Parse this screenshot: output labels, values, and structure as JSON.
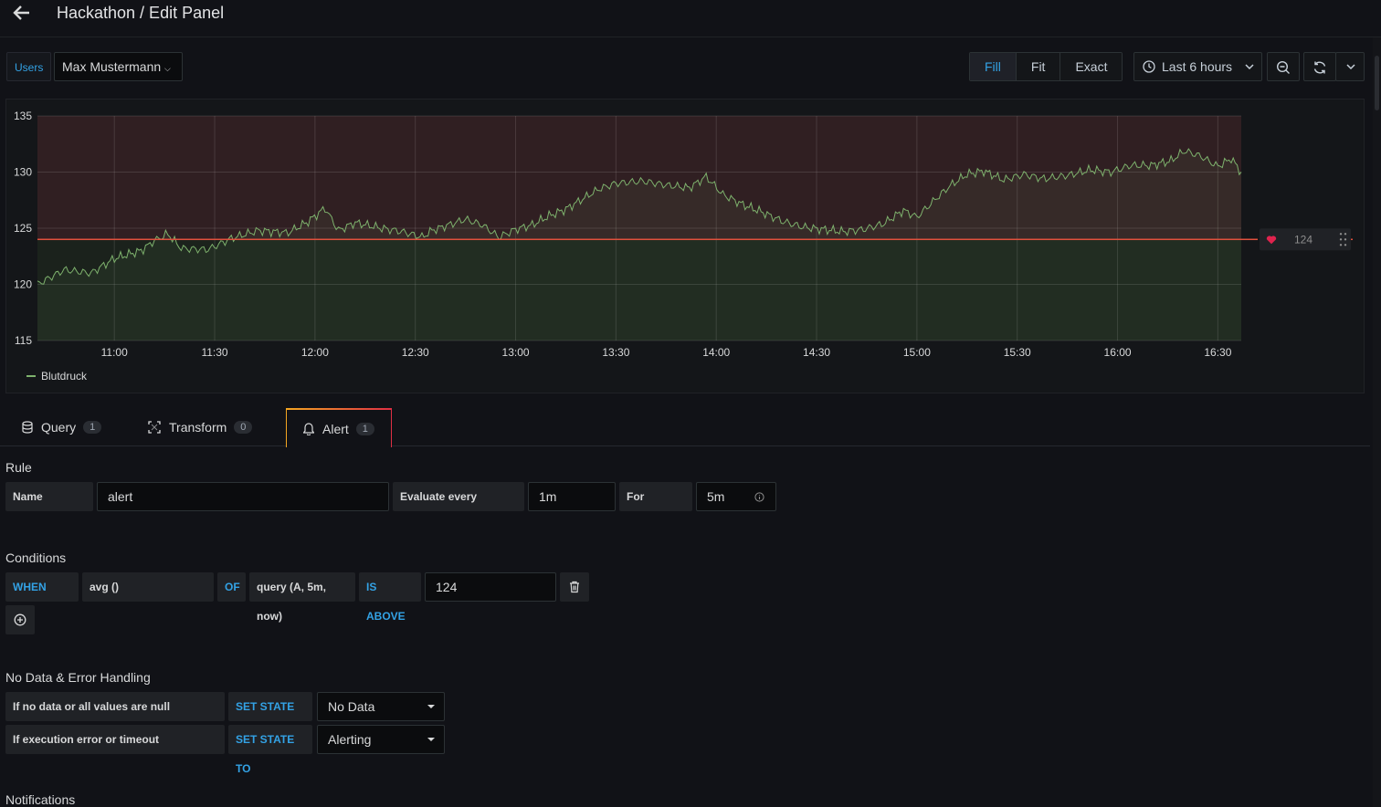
{
  "header": {
    "title": "Hackathon / Edit Panel"
  },
  "variables": {
    "label": "Users",
    "value": "Max Mustermann"
  },
  "toolbar": {
    "display_modes": [
      "Fill",
      "Fit",
      "Exact"
    ],
    "active_mode": "Fill",
    "time_range": "Last 6 hours",
    "zoom_icon": "zoom-out-icon",
    "refresh_icon": "refresh-icon"
  },
  "chart_data": {
    "type": "line",
    "series": [
      {
        "name": "Blutdruck",
        "color": "#7eb26d"
      }
    ],
    "y_ticks": [
      "135",
      "130",
      "125",
      "120",
      "115"
    ],
    "ylim": [
      115,
      135
    ],
    "x_ticks": [
      "11:00",
      "11:30",
      "12:00",
      "12:30",
      "13:00",
      "13:30",
      "14:00",
      "14:30",
      "15:00",
      "15:30",
      "16:00",
      "16:30"
    ],
    "xlim": [
      "10:37",
      "16:37"
    ],
    "threshold": {
      "value": 124,
      "label": "124",
      "op": "gt",
      "color": "#e0503d"
    },
    "points": [
      [
        "10:37",
        120.0
      ],
      [
        "10:45",
        121.3
      ],
      [
        "10:53",
        121.0
      ],
      [
        "11:00",
        122.3
      ],
      [
        "11:08",
        123.0
      ],
      [
        "11:12",
        123.9
      ],
      [
        "11:16",
        124.5
      ],
      [
        "11:20",
        123.2
      ],
      [
        "11:28",
        123.1
      ],
      [
        "11:35",
        124.1
      ],
      [
        "11:43",
        124.8
      ],
      [
        "11:52",
        124.6
      ],
      [
        "11:58",
        125.6
      ],
      [
        "12:03",
        126.8
      ],
      [
        "12:07",
        124.8
      ],
      [
        "12:12",
        125.5
      ],
      [
        "12:20",
        125.0
      ],
      [
        "12:26",
        124.7
      ],
      [
        "12:32",
        124.2
      ],
      [
        "12:35",
        124.8
      ],
      [
        "12:40",
        125.3
      ],
      [
        "12:45",
        125.8
      ],
      [
        "12:50",
        125.3
      ],
      [
        "12:55",
        124.2
      ],
      [
        "13:00",
        124.9
      ],
      [
        "13:05",
        125.3
      ],
      [
        "13:10",
        126.1
      ],
      [
        "13:15",
        126.7
      ],
      [
        "13:20",
        127.6
      ],
      [
        "13:25",
        128.5
      ],
      [
        "13:30",
        129.0
      ],
      [
        "13:38",
        129.2
      ],
      [
        "13:46",
        128.8
      ],
      [
        "13:52",
        128.6
      ],
      [
        "13:57",
        129.6
      ],
      [
        "14:02",
        128.0
      ],
      [
        "14:08",
        127.1
      ],
      [
        "14:14",
        126.4
      ],
      [
        "14:20",
        125.6
      ],
      [
        "14:26",
        125.1
      ],
      [
        "14:32",
        124.9
      ],
      [
        "14:38",
        124.7
      ],
      [
        "14:44",
        124.9
      ],
      [
        "14:50",
        125.4
      ],
      [
        "14:56",
        126.6
      ],
      [
        "15:00",
        126.0
      ],
      [
        "15:06",
        127.7
      ],
      [
        "15:10",
        128.8
      ],
      [
        "15:15",
        129.8
      ],
      [
        "15:20",
        130.1
      ],
      [
        "15:26",
        129.3
      ],
      [
        "15:32",
        129.8
      ],
      [
        "15:38",
        129.4
      ],
      [
        "15:45",
        129.7
      ],
      [
        "15:52",
        130.2
      ],
      [
        "15:58",
        130.0
      ],
      [
        "16:04",
        130.6
      ],
      [
        "16:10",
        130.6
      ],
      [
        "16:16",
        131.0
      ],
      [
        "16:20",
        131.9
      ],
      [
        "16:25",
        131.4
      ],
      [
        "16:30",
        130.5
      ],
      [
        "16:34",
        131.2
      ],
      [
        "16:37",
        130.0
      ]
    ]
  },
  "tabs": [
    {
      "label": "Query",
      "count": "1"
    },
    {
      "label": "Transform",
      "count": "0"
    },
    {
      "label": "Alert",
      "count": "1"
    }
  ],
  "rule": {
    "section": "Rule",
    "name_label": "Name",
    "name_value": "alert",
    "eval_label": "Evaluate every",
    "eval_value": "1m",
    "for_label": "For",
    "for_value": "5m"
  },
  "conditions": {
    "section": "Conditions",
    "when": "WHEN",
    "reducer": "avg ()",
    "of": "OF",
    "query": "query (A, 5m, now)",
    "evaluator": "IS ABOVE",
    "threshold": "124"
  },
  "nodata": {
    "section": "No Data & Error Handling",
    "row1_label": "If no data or all values are null",
    "row1_kw": "SET STATE TO",
    "row1_value": "No Data",
    "row2_label": "If execution error or timeout",
    "row2_kw": "SET STATE TO",
    "row2_value": "Alerting"
  },
  "notifications": {
    "section": "Notifications"
  }
}
